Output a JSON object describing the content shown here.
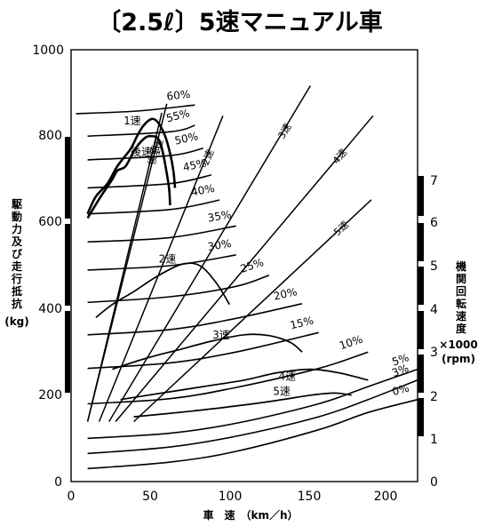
{
  "chart_data": {
    "type": "line",
    "title": "〔2.5ℓ〕5速マニュアル車",
    "xlabel": "車　速　（km／h）",
    "ylabel_left": [
      "駆",
      "動",
      "力",
      "及",
      "び",
      "走",
      "行",
      "抵",
      "抗",
      "(kg)"
    ],
    "ylabel_right": [
      "機",
      "関",
      "回",
      "転",
      "速",
      "度",
      "×1000",
      "(rpm)"
    ],
    "x_ticks": [
      "0",
      "50",
      "100",
      "150",
      "200"
    ],
    "y_ticks_left": [
      "0",
      "200",
      "400",
      "600",
      "800",
      "1000"
    ],
    "y_ticks_right": [
      "0",
      "1",
      "2",
      "3",
      "4",
      "5",
      "6",
      "7"
    ],
    "xlim": [
      0,
      210
    ],
    "ylim": [
      0,
      1000
    ],
    "y2lim": [
      0,
      7.2
    ],
    "resistance_curves": [
      {
        "name": "0%",
        "x": [
          10,
          60,
          100,
          150,
          180,
          210
        ],
        "y": [
          30,
          45,
          70,
          120,
          160,
          190
        ]
      },
      {
        "name": "3%",
        "x": [
          10,
          60,
          100,
          150,
          180,
          210
        ],
        "y": [
          65,
          80,
          105,
          150,
          190,
          235
        ]
      },
      {
        "name": "5%",
        "x": [
          10,
          60,
          100,
          150,
          180,
          210
        ],
        "y": [
          100,
          112,
          135,
          180,
          220,
          260
        ]
      },
      {
        "name": "10%",
        "x": [
          10,
          60,
          100,
          150,
          180
        ],
        "y": [
          180,
          192,
          218,
          262,
          300
        ]
      },
      {
        "name": "15%",
        "x": [
          10,
          60,
          100,
          150
        ],
        "y": [
          262,
          275,
          300,
          345
        ]
      },
      {
        "name": "20%",
        "x": [
          10,
          60,
          100,
          140
        ],
        "y": [
          340,
          352,
          378,
          412
        ]
      },
      {
        "name": "25%",
        "x": [
          10,
          60,
          100,
          120
        ],
        "y": [
          415,
          428,
          452,
          478
        ]
      },
      {
        "name": "30%",
        "x": [
          10,
          60,
          100
        ],
        "y": [
          490,
          500,
          525
        ]
      },
      {
        "name": "35%",
        "x": [
          10,
          60,
          100
        ],
        "y": [
          555,
          565,
          592
        ]
      },
      {
        "name": "40%",
        "x": [
          10,
          60,
          90
        ],
        "y": [
          620,
          630,
          652
        ]
      },
      {
        "name": "45%",
        "x": [
          10,
          60,
          85
        ],
        "y": [
          680,
          690,
          710
        ]
      },
      {
        "name": "50%",
        "x": [
          10,
          60,
          80
        ],
        "y": [
          745,
          755,
          772
        ]
      },
      {
        "name": "55%",
        "x": [
          10,
          60,
          75
        ],
        "y": [
          800,
          810,
          825
        ]
      },
      {
        "name": "60%",
        "x": [
          3,
          40,
          75
        ],
        "y": [
          852,
          858,
          872
        ]
      }
    ],
    "tractive_curves": [
      {
        "name": "1速",
        "x": [
          10,
          15,
          22,
          28,
          36,
          40,
          44,
          49,
          53,
          57,
          60,
          62,
          63
        ],
        "y": [
          620,
          660,
          690,
          730,
          770,
          800,
          825,
          840,
          830,
          800,
          760,
          720,
          680
        ]
      },
      {
        "name": "後速",
        "x": [
          10,
          18,
          25,
          28,
          33,
          38,
          43,
          48,
          54,
          59,
          60
        ],
        "y": [
          610,
          660,
          700,
          720,
          730,
          765,
          790,
          800,
          785,
          690,
          640
        ]
      },
      {
        "name": "2速",
        "x": [
          15,
          25,
          38,
          52,
          67,
          78,
          88,
          96
        ],
        "y": [
          380,
          410,
          440,
          475,
          503,
          500,
          460,
          410
        ]
      },
      {
        "name": "3速",
        "x": [
          25,
          45,
          65,
          85,
          105,
          120,
          133,
          140
        ],
        "y": [
          260,
          285,
          305,
          325,
          340,
          338,
          322,
          300
        ]
      },
      {
        "name": "4速",
        "x": [
          30,
          55,
          80,
          105,
          125,
          145,
          162,
          180
        ],
        "y": [
          190,
          205,
          220,
          235,
          252,
          260,
          252,
          235
        ]
      },
      {
        "name": "5速",
        "x": [
          38,
          70,
          100,
          125,
          145,
          160,
          170
        ],
        "y": [
          150,
          162,
          175,
          188,
          200,
          205,
          200
        ]
      }
    ],
    "engine_speed_lines": [
      {
        "name": "1速",
        "x": [
          10,
          58
        ],
        "y": [
          1,
          6.3
        ]
      },
      {
        "name": "後速",
        "x": [
          10,
          55
        ],
        "y": [
          1,
          6.15
        ]
      },
      {
        "name": "2速",
        "x": [
          17,
          92
        ],
        "y": [
          1,
          6.1
        ]
      },
      {
        "name": "3速",
        "x": [
          23,
          145
        ],
        "y": [
          1,
          6.6
        ]
      },
      {
        "name": "4速",
        "x": [
          27,
          183
        ],
        "y": [
          1,
          6.1
        ]
      },
      {
        "name": "5速",
        "x": [
          38,
          182
        ],
        "y": [
          1,
          4.7
        ]
      }
    ]
  }
}
